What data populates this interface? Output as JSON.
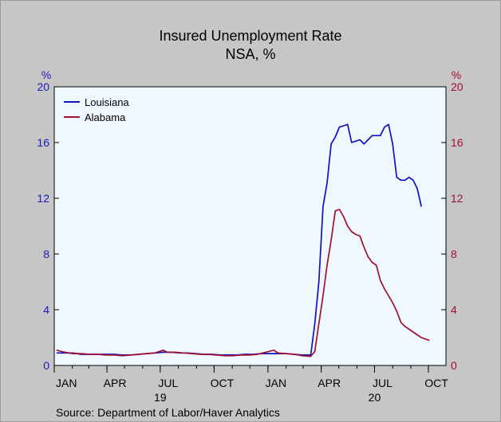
{
  "chart_data": {
    "type": "line",
    "title": "Insured Unemployment Rate",
    "subtitle": "NSA, %",
    "left_axis_unit": "%",
    "right_axis_unit": "%",
    "source": "Source:  Department of Labor/Haver Analytics",
    "ylim": [
      0,
      20
    ],
    "y_ticks": [
      0,
      4,
      8,
      12,
      16,
      20
    ],
    "xlim": [
      "2019-01-01",
      "2020-10-31"
    ],
    "x_ticks": [
      {
        "date": "2019-01-01",
        "label": "JAN"
      },
      {
        "date": "2019-04-01",
        "label": "APR"
      },
      {
        "date": "2019-07-01",
        "label": "JUL"
      },
      {
        "date": "2019-10-01",
        "label": "OCT"
      },
      {
        "date": "2020-01-01",
        "label": "JAN"
      },
      {
        "date": "2020-04-01",
        "label": "APR"
      },
      {
        "date": "2020-07-01",
        "label": "JUL"
      },
      {
        "date": "2020-10-01",
        "label": "OCT"
      }
    ],
    "year_labels": [
      {
        "date": "2019-07-01",
        "label": "19"
      },
      {
        "date": "2020-07-01",
        "label": "20"
      }
    ],
    "grid": false,
    "legend_position": "top-left",
    "series": [
      {
        "name": "Louisiana",
        "color": "#1010c0",
        "axis": "left",
        "points": [
          [
            "2019-01-05",
            0.9
          ],
          [
            "2019-01-19",
            0.9
          ],
          [
            "2019-02-02",
            0.9
          ],
          [
            "2019-02-16",
            0.8
          ],
          [
            "2019-03-02",
            0.8
          ],
          [
            "2019-03-16",
            0.8
          ],
          [
            "2019-03-30",
            0.8
          ],
          [
            "2019-04-13",
            0.8
          ],
          [
            "2019-04-27",
            0.75
          ],
          [
            "2019-05-11",
            0.75
          ],
          [
            "2019-05-25",
            0.8
          ],
          [
            "2019-06-08",
            0.85
          ],
          [
            "2019-06-22",
            0.9
          ],
          [
            "2019-07-06",
            0.95
          ],
          [
            "2019-07-20",
            0.95
          ],
          [
            "2019-08-03",
            0.9
          ],
          [
            "2019-08-17",
            0.9
          ],
          [
            "2019-08-31",
            0.85
          ],
          [
            "2019-09-14",
            0.8
          ],
          [
            "2019-09-28",
            0.8
          ],
          [
            "2019-10-12",
            0.75
          ],
          [
            "2019-10-26",
            0.75
          ],
          [
            "2019-11-09",
            0.75
          ],
          [
            "2019-11-23",
            0.8
          ],
          [
            "2019-12-07",
            0.8
          ],
          [
            "2019-12-21",
            0.85
          ],
          [
            "2020-01-04",
            0.85
          ],
          [
            "2020-01-18",
            0.85
          ],
          [
            "2020-02-01",
            0.85
          ],
          [
            "2020-02-15",
            0.8
          ],
          [
            "2020-02-29",
            0.75
          ],
          [
            "2020-03-14",
            0.75
          ],
          [
            "2020-03-21",
            3.0
          ],
          [
            "2020-03-28",
            6.0
          ],
          [
            "2020-04-04",
            11.4
          ],
          [
            "2020-04-11",
            13.1
          ],
          [
            "2020-04-18",
            15.9
          ],
          [
            "2020-04-25",
            16.4
          ],
          [
            "2020-05-02",
            17.1
          ],
          [
            "2020-05-09",
            17.2
          ],
          [
            "2020-05-16",
            17.3
          ],
          [
            "2020-05-23",
            16.0
          ],
          [
            "2020-05-30",
            16.1
          ],
          [
            "2020-06-06",
            16.2
          ],
          [
            "2020-06-13",
            15.9
          ],
          [
            "2020-06-20",
            16.2
          ],
          [
            "2020-06-27",
            16.5
          ],
          [
            "2020-07-04",
            16.5
          ],
          [
            "2020-07-11",
            16.5
          ],
          [
            "2020-07-18",
            17.1
          ],
          [
            "2020-07-25",
            17.3
          ],
          [
            "2020-08-01",
            15.9
          ],
          [
            "2020-08-08",
            13.5
          ],
          [
            "2020-08-15",
            13.3
          ],
          [
            "2020-08-22",
            13.3
          ],
          [
            "2020-08-29",
            13.5
          ],
          [
            "2020-09-05",
            13.3
          ],
          [
            "2020-09-12",
            12.7
          ],
          [
            "2020-09-19",
            11.4
          ]
        ]
      },
      {
        "name": "Alabama",
        "color": "#a01030",
        "axis": "right",
        "points": [
          [
            "2019-01-05",
            1.1
          ],
          [
            "2019-01-19",
            0.95
          ],
          [
            "2019-02-02",
            0.85
          ],
          [
            "2019-02-16",
            0.85
          ],
          [
            "2019-03-02",
            0.8
          ],
          [
            "2019-03-16",
            0.8
          ],
          [
            "2019-03-30",
            0.75
          ],
          [
            "2019-04-13",
            0.75
          ],
          [
            "2019-04-27",
            0.7
          ],
          [
            "2019-05-11",
            0.75
          ],
          [
            "2019-05-25",
            0.8
          ],
          [
            "2019-06-08",
            0.85
          ],
          [
            "2019-06-22",
            0.9
          ],
          [
            "2019-07-06",
            1.1
          ],
          [
            "2019-07-13",
            0.95
          ],
          [
            "2019-07-27",
            0.95
          ],
          [
            "2019-08-10",
            0.9
          ],
          [
            "2019-08-24",
            0.85
          ],
          [
            "2019-09-07",
            0.8
          ],
          [
            "2019-09-21",
            0.8
          ],
          [
            "2019-10-05",
            0.75
          ],
          [
            "2019-10-19",
            0.7
          ],
          [
            "2019-11-02",
            0.7
          ],
          [
            "2019-11-16",
            0.75
          ],
          [
            "2019-11-30",
            0.75
          ],
          [
            "2019-12-14",
            0.8
          ],
          [
            "2019-12-28",
            0.95
          ],
          [
            "2020-01-11",
            1.1
          ],
          [
            "2020-01-18",
            0.9
          ],
          [
            "2020-02-01",
            0.85
          ],
          [
            "2020-02-15",
            0.8
          ],
          [
            "2020-02-29",
            0.7
          ],
          [
            "2020-03-14",
            0.65
          ],
          [
            "2020-03-21",
            1.0
          ],
          [
            "2020-03-28",
            3.0
          ],
          [
            "2020-04-04",
            5.0
          ],
          [
            "2020-04-11",
            7.2
          ],
          [
            "2020-04-18",
            9.0
          ],
          [
            "2020-04-25",
            11.1
          ],
          [
            "2020-05-02",
            11.2
          ],
          [
            "2020-05-09",
            10.7
          ],
          [
            "2020-05-16",
            10.0
          ],
          [
            "2020-05-23",
            9.6
          ],
          [
            "2020-05-30",
            9.4
          ],
          [
            "2020-06-06",
            9.3
          ],
          [
            "2020-06-13",
            8.5
          ],
          [
            "2020-06-20",
            7.8
          ],
          [
            "2020-06-27",
            7.4
          ],
          [
            "2020-07-04",
            7.2
          ],
          [
            "2020-07-11",
            6.1
          ],
          [
            "2020-07-18",
            5.5
          ],
          [
            "2020-07-25",
            5.0
          ],
          [
            "2020-08-01",
            4.5
          ],
          [
            "2020-08-08",
            3.9
          ],
          [
            "2020-08-15",
            3.1
          ],
          [
            "2020-08-22",
            2.8
          ],
          [
            "2020-08-29",
            2.6
          ],
          [
            "2020-09-05",
            2.4
          ],
          [
            "2020-09-12",
            2.2
          ],
          [
            "2020-09-19",
            2.0
          ],
          [
            "2020-09-26",
            1.9
          ],
          [
            "2020-10-03",
            1.8
          ]
        ]
      }
    ]
  },
  "colors": {
    "background": "#c6c6c6",
    "plot_background": "#f0f8ff",
    "left_axis": "#1a1ab8",
    "right_axis": "#a01030"
  }
}
